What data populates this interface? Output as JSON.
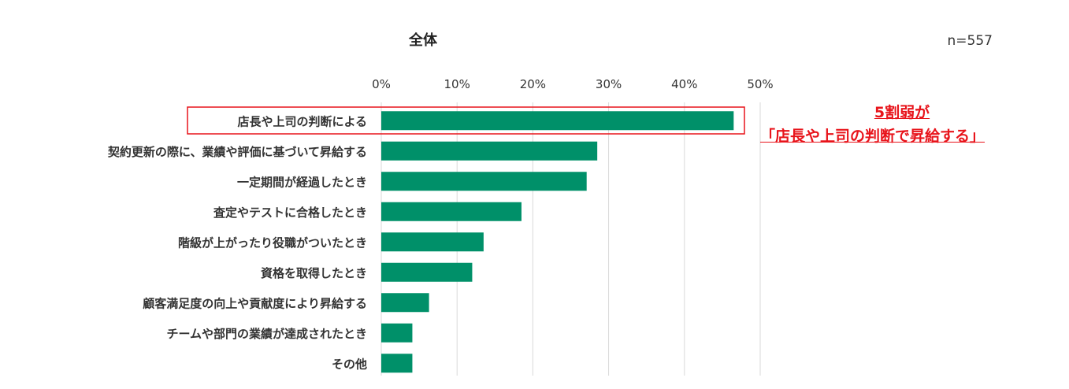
{
  "chart_data": {
    "type": "bar",
    "orientation": "horizontal",
    "title": "全体",
    "sample_size": "n=557",
    "categories": [
      "店長や上司の判断による",
      "契約更新の際に、業績や評価に基づいて昇給する",
      "一定期間が経過したとき",
      "査定やテストに合格したとき",
      "階級が上がったり役職がついたとき",
      "資格を取得したとき",
      "顧客満足度の向上や貢献度により昇給する",
      "チームや部門の業績が達成されたとき",
      "その他"
    ],
    "values": [
      46.5,
      28.5,
      27.1,
      18.5,
      13.5,
      12.0,
      6.3,
      4.1,
      4.1
    ],
    "xlim": [
      0,
      50
    ],
    "ticks": [
      "0%",
      "10%",
      "20%",
      "30%",
      "40%",
      "50%"
    ],
    "xlabel": "",
    "ylabel": "",
    "grid": true,
    "bar_color": "#009069",
    "highlight_index": 0,
    "annotation": {
      "line1": "5割弱が",
      "line2": "「店長や上司の判断で昇給する」",
      "color": "#e8141b"
    }
  }
}
